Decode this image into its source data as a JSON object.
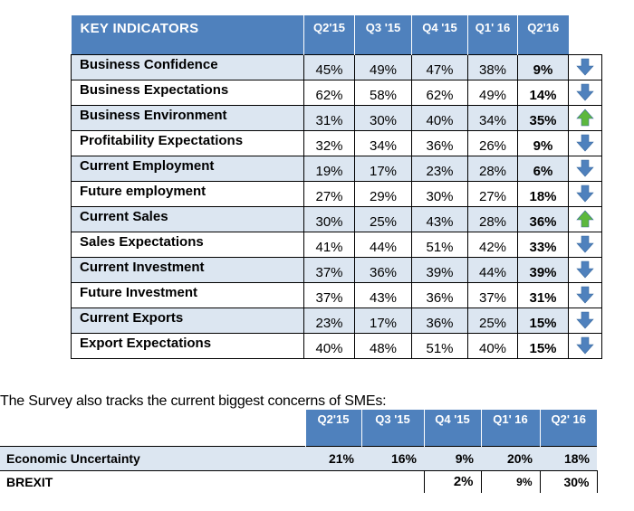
{
  "indicators": {
    "header": {
      "label": "KEY INDICATORS",
      "quarters": [
        "Q2'15",
        "Q3 '15",
        "Q4 '15",
        "Q1' 16",
        "Q2'16"
      ]
    },
    "rows": [
      {
        "name": "Business Confidence",
        "values": [
          "45%",
          "49%",
          "47%",
          "38%",
          "9%"
        ],
        "trend": "down",
        "shaded": true
      },
      {
        "name": "Business Expectations",
        "values": [
          "62%",
          "58%",
          "62%",
          "49%",
          "14%"
        ],
        "trend": "down",
        "shaded": false
      },
      {
        "name": "Business Environment",
        "values": [
          "31%",
          "30%",
          "40%",
          "34%",
          "35%"
        ],
        "trend": "up",
        "shaded": true
      },
      {
        "name": "Profitability Expectations",
        "values": [
          "32%",
          "34%",
          "36%",
          "26%",
          "9%"
        ],
        "trend": "down",
        "shaded": false
      },
      {
        "name": "Current Employment",
        "values": [
          "19%",
          "17%",
          "23%",
          "28%",
          "6%"
        ],
        "trend": "down",
        "shaded": true
      },
      {
        "name": "Future employment",
        "values": [
          "27%",
          "29%",
          "30%",
          "27%",
          "18%"
        ],
        "trend": "down",
        "shaded": false
      },
      {
        "name": "Current Sales",
        "values": [
          "30%",
          "25%",
          "43%",
          "28%",
          "36%"
        ],
        "trend": "up",
        "shaded": true
      },
      {
        "name": "Sales Expectations",
        "values": [
          "41%",
          "44%",
          "51%",
          "42%",
          "33%"
        ],
        "trend": "down",
        "shaded": false
      },
      {
        "name": "Current Investment",
        "values": [
          "37%",
          "36%",
          "39%",
          "44%",
          "39%"
        ],
        "trend": "down",
        "shaded": true
      },
      {
        "name": "Future Investment",
        "values": [
          "37%",
          "43%",
          "36%",
          "37%",
          "31%"
        ],
        "trend": "down",
        "shaded": false
      },
      {
        "name": "Current Exports",
        "values": [
          "23%",
          "17%",
          "36%",
          "25%",
          "15%"
        ],
        "trend": "down",
        "shaded": true
      },
      {
        "name": "Export Expectations",
        "values": [
          "40%",
          "48%",
          "51%",
          "40%",
          "15%"
        ],
        "trend": "down",
        "shaded": false
      }
    ]
  },
  "caption": "The Survey also tracks the current biggest concerns of SMEs:",
  "concerns": {
    "quarters": [
      "Q2'15",
      "Q3 '15",
      "Q4 '15",
      "Q1' 16",
      "Q2' 16"
    ],
    "rows": [
      {
        "name": "Economic Uncertainty",
        "values": [
          "21%",
          "16%",
          "9%",
          "20%",
          "18%"
        ]
      },
      {
        "name": "BREXIT",
        "values": [
          "",
          "",
          "2%",
          "9%",
          "30%"
        ]
      }
    ]
  },
  "colors": {
    "header_blue": "#4f81bd",
    "shade": "#dce6f1",
    "arrow_down": "#4f81bd",
    "arrow_up": "#5cb83e"
  }
}
